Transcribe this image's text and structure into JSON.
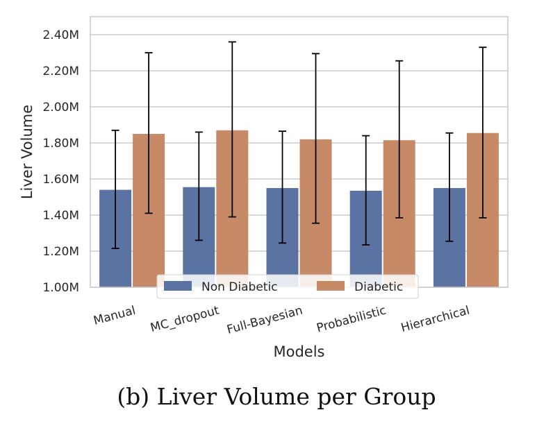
{
  "caption": "(b) Liver Volume per Group",
  "chart_data": {
    "type": "bar",
    "categories": [
      "Manual",
      "MC_dropout",
      "Full-Bayesian",
      "Probabilistic",
      "Hierarchical"
    ],
    "series": [
      {
        "name": "Non Diabetic",
        "color": "#5b73a3",
        "values": [
          1.54,
          1.555,
          1.55,
          1.535,
          1.55
        ],
        "error_low": [
          1.215,
          1.26,
          1.245,
          1.235,
          1.255
        ],
        "error_high": [
          1.87,
          1.86,
          1.865,
          1.84,
          1.855
        ]
      },
      {
        "name": "Diabetic",
        "color": "#c68a66",
        "values": [
          1.85,
          1.87,
          1.82,
          1.815,
          1.855
        ],
        "error_low": [
          1.41,
          1.39,
          1.355,
          1.385,
          1.385
        ],
        "error_high": [
          2.3,
          2.36,
          2.295,
          2.255,
          2.33
        ]
      }
    ],
    "xlabel": "Models",
    "ylabel": "Liver Volume",
    "ylim": [
      1.0,
      2.5
    ],
    "yticks": [
      1.0,
      1.2,
      1.4,
      1.6,
      1.8,
      2.0,
      2.2,
      2.4
    ],
    "ytick_labels": [
      "1.00M",
      "1.20M",
      "1.40M",
      "1.60M",
      "1.80M",
      "2.00M",
      "2.20M",
      "2.40M"
    ],
    "grid": true,
    "legend_position": "bottom-center"
  }
}
